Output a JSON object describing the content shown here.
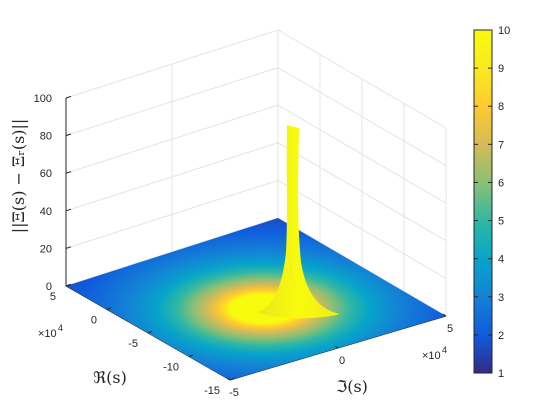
{
  "chart_data": {
    "type": "surface",
    "zlabel": "||Ξ(s) − Ξᵣ(s)||",
    "ylabel": "ℜ(s)",
    "xlabel": "ℑ(s)",
    "re_axis": {
      "range": [
        -15,
        5
      ],
      "ticks": [
        "5",
        "0",
        "-5",
        "-10",
        "-15"
      ],
      "exponent": "×10",
      "exponent_power": "4"
    },
    "im_axis": {
      "range": [
        -5,
        5
      ],
      "ticks": [
        "-5",
        "0",
        "5"
      ],
      "exponent": "×10",
      "exponent_power": "4"
    },
    "z_axis": {
      "range": [
        0,
        100
      ],
      "ticks": [
        "0",
        "20",
        "40",
        "60",
        "80",
        "100"
      ]
    },
    "peak": {
      "re": 0,
      "im": 0,
      "value": 84
    },
    "grid": true,
    "colormap": "parula",
    "colorbar": {
      "range": [
        1,
        10
      ],
      "ticks": [
        "1",
        "2",
        "3",
        "4",
        "5",
        "6",
        "7",
        "8",
        "9",
        "10"
      ],
      "placement": "right"
    }
  },
  "colors": {
    "parula": [
      "#352a87",
      "#0f5cdd",
      "#1481d6",
      "#06a4ca",
      "#2eb7a4",
      "#87bf77",
      "#d1bb59",
      "#fec832",
      "#f9e721",
      "#f9fb0e"
    ]
  }
}
